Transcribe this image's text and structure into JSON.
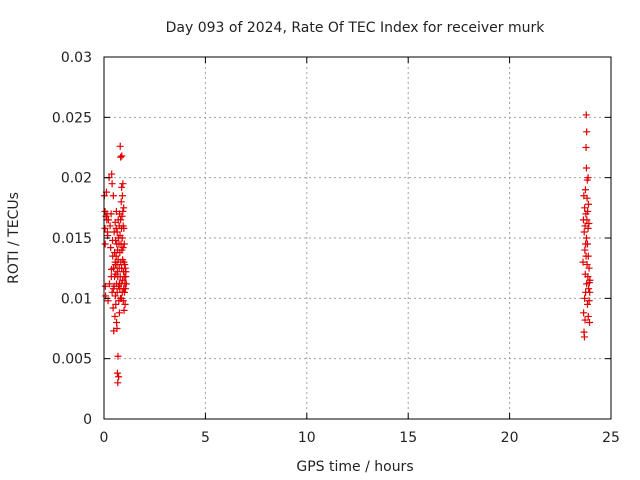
{
  "chart_data": {
    "type": "scatter",
    "title": "Day 093 of 2024, Rate Of TEC Index for receiver murk",
    "xlabel": "GPS time / hours",
    "ylabel": "ROTI / TECUs",
    "xlim": [
      0,
      25
    ],
    "ylim": [
      0,
      0.03
    ],
    "x_ticks": [
      0,
      5,
      10,
      15,
      20,
      25
    ],
    "x_tick_labels": [
      "0",
      "5",
      "10",
      "15",
      "20",
      "25"
    ],
    "y_ticks": [
      0,
      0.005,
      0.01,
      0.015,
      0.02,
      0.025,
      0.03
    ],
    "y_tick_labels": [
      "0",
      "0.005",
      "0.01",
      "0.015",
      "0.02",
      "0.025",
      "0.03"
    ],
    "grid": true,
    "marker": "+",
    "color": "#e00000",
    "series": [
      {
        "name": "ROTI",
        "points": [
          [
            0.02,
            0.0185
          ],
          [
            0.05,
            0.0172
          ],
          [
            0.05,
            0.0158
          ],
          [
            0.06,
            0.0145
          ],
          [
            0.07,
            0.011
          ],
          [
            0.08,
            0.0102
          ],
          [
            0.1,
            0.0168
          ],
          [
            0.12,
            0.0188
          ],
          [
            0.14,
            0.0165
          ],
          [
            0.15,
            0.017
          ],
          [
            0.17,
            0.0155
          ],
          [
            0.18,
            0.0152
          ],
          [
            0.2,
            0.0098
          ],
          [
            0.22,
            0.0165
          ],
          [
            0.25,
            0.02
          ],
          [
            0.27,
            0.0112
          ],
          [
            0.3,
            0.016
          ],
          [
            0.33,
            0.0142
          ],
          [
            0.35,
            0.017
          ],
          [
            0.37,
            0.0124
          ],
          [
            0.38,
            0.0203
          ],
          [
            0.4,
            0.0195
          ],
          [
            0.4,
            0.0105
          ],
          [
            0.42,
            0.0148
          ],
          [
            0.43,
            0.0135
          ],
          [
            0.45,
            0.0092
          ],
          [
            0.46,
            0.0185
          ],
          [
            0.47,
            0.0125
          ],
          [
            0.48,
            0.0073
          ],
          [
            0.5,
            0.0155
          ],
          [
            0.5,
            0.011
          ],
          [
            0.52,
            0.0138
          ],
          [
            0.52,
            0.0118
          ],
          [
            0.54,
            0.0085
          ],
          [
            0.55,
            0.0163
          ],
          [
            0.55,
            0.013
          ],
          [
            0.56,
            0.0102
          ],
          [
            0.57,
            0.0148
          ],
          [
            0.58,
            0.012
          ],
          [
            0.58,
            0.0095
          ],
          [
            0.6,
            0.0158
          ],
          [
            0.6,
            0.0135
          ],
          [
            0.61,
            0.0172
          ],
          [
            0.62,
            0.0112
          ],
          [
            0.62,
            0.008
          ],
          [
            0.63,
            0.0145
          ],
          [
            0.64,
            0.0128
          ],
          [
            0.64,
            0.0075
          ],
          [
            0.65,
            0.0155
          ],
          [
            0.65,
            0.0105
          ],
          [
            0.66,
            0.0038
          ],
          [
            0.67,
            0.014
          ],
          [
            0.68,
            0.0118
          ],
          [
            0.68,
            0.003
          ],
          [
            0.69,
            0.0052
          ],
          [
            0.7,
            0.0165
          ],
          [
            0.7,
            0.0132
          ],
          [
            0.71,
            0.015
          ],
          [
            0.72,
            0.011
          ],
          [
            0.72,
            0.0035
          ],
          [
            0.73,
            0.0098
          ],
          [
            0.74,
            0.0145
          ],
          [
            0.75,
            0.016
          ],
          [
            0.75,
            0.0125
          ],
          [
            0.76,
            0.0088
          ],
          [
            0.77,
            0.017
          ],
          [
            0.78,
            0.0138
          ],
          [
            0.78,
            0.0108
          ],
          [
            0.79,
            0.0152
          ],
          [
            0.8,
            0.0118
          ],
          [
            0.8,
            0.0226
          ],
          [
            0.81,
            0.01
          ],
          [
            0.82,
            0.0217
          ],
          [
            0.82,
            0.0165
          ],
          [
            0.83,
            0.013
          ],
          [
            0.84,
            0.0145
          ],
          [
            0.85,
            0.0112
          ],
          [
            0.85,
            0.018
          ],
          [
            0.86,
            0.0158
          ],
          [
            0.87,
            0.0125
          ],
          [
            0.87,
            0.0192
          ],
          [
            0.88,
            0.014
          ],
          [
            0.88,
            0.0218
          ],
          [
            0.89,
            0.0168
          ],
          [
            0.9,
            0.0105
          ],
          [
            0.9,
            0.015
          ],
          [
            0.91,
            0.0185
          ],
          [
            0.92,
            0.0132
          ],
          [
            0.92,
            0.0115
          ],
          [
            0.93,
            0.0195
          ],
          [
            0.94,
            0.0142
          ],
          [
            0.95,
            0.0098
          ],
          [
            0.95,
            0.016
          ],
          [
            0.96,
            0.0122
          ],
          [
            0.97,
            0.0108
          ],
          [
            0.97,
            0.0175
          ],
          [
            0.98,
            0.013
          ],
          [
            0.99,
            0.009
          ],
          [
            1.0,
            0.0118
          ],
          [
            1.0,
            0.0145
          ],
          [
            1.01,
            0.0105
          ],
          [
            1.02,
            0.0128
          ],
          [
            1.03,
            0.0112
          ],
          [
            1.04,
            0.0095
          ],
          [
            1.05,
            0.0125
          ],
          [
            1.06,
            0.0108
          ],
          [
            1.07,
            0.0118
          ],
          [
            1.08,
            0.0122
          ],
          [
            1.1,
            0.0112
          ],
          [
            0.98,
            0.0158
          ],
          [
            0.93,
            0.0172
          ],
          [
            0.86,
            0.01
          ],
          [
            0.76,
            0.0112
          ],
          [
            0.66,
            0.0122
          ],
          [
            0.56,
            0.0128
          ],
          [
            0.46,
            0.0108
          ],
          [
            0.36,
            0.0118
          ],
          [
            23.62,
            0.013
          ],
          [
            23.64,
            0.0165
          ],
          [
            23.65,
            0.0088
          ],
          [
            23.66,
            0.0185
          ],
          [
            23.67,
            0.0072
          ],
          [
            23.68,
            0.0155
          ],
          [
            23.69,
            0.0068
          ],
          [
            23.7,
            0.0175
          ],
          [
            23.7,
            0.01
          ],
          [
            23.71,
            0.014
          ],
          [
            23.72,
            0.016
          ],
          [
            23.72,
            0.0082
          ],
          [
            23.73,
            0.012
          ],
          [
            23.74,
            0.019
          ],
          [
            23.75,
            0.0145
          ],
          [
            23.75,
            0.0105
          ],
          [
            23.76,
            0.017
          ],
          [
            23.77,
            0.0135
          ],
          [
            23.77,
            0.0225
          ],
          [
            23.78,
            0.0252
          ],
          [
            23.79,
            0.015
          ],
          [
            23.79,
            0.0208
          ],
          [
            23.8,
            0.0238
          ],
          [
            23.8,
            0.0112
          ],
          [
            23.81,
            0.0165
          ],
          [
            23.82,
            0.0183
          ],
          [
            23.82,
            0.0128
          ],
          [
            23.83,
            0.0198
          ],
          [
            23.84,
            0.0145
          ],
          [
            23.84,
            0.0095
          ],
          [
            23.85,
            0.0172
          ],
          [
            23.86,
            0.0118
          ],
          [
            23.87,
            0.0158
          ],
          [
            23.87,
            0.02
          ],
          [
            23.88,
            0.0135
          ],
          [
            23.88,
            0.0085
          ],
          [
            23.89,
            0.0178
          ],
          [
            23.9,
            0.0108
          ],
          [
            23.91,
            0.0162
          ],
          [
            23.92,
            0.0125
          ],
          [
            23.92,
            0.0098
          ],
          [
            23.93,
            0.0113
          ],
          [
            23.94,
            0.008
          ],
          [
            23.95,
            0.0105
          ],
          [
            23.96,
            0.0115
          ]
        ]
      }
    ]
  }
}
